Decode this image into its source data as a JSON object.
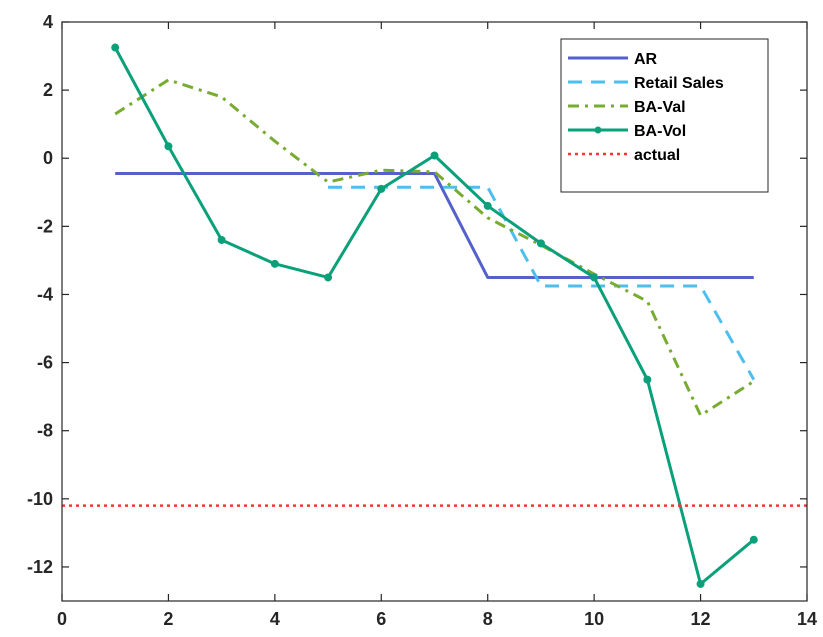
{
  "chart_data": {
    "type": "line",
    "title": "",
    "xlabel": "",
    "ylabel": "",
    "xlim": [
      0,
      14
    ],
    "ylim": [
      -13,
      4
    ],
    "xticks": [
      0,
      2,
      4,
      6,
      8,
      10,
      12,
      14
    ],
    "yticks": [
      4,
      2,
      0,
      -2,
      -4,
      -6,
      -8,
      -10,
      -12
    ],
    "xtick_labels": [
      "0",
      "2",
      "4",
      "6",
      "8",
      "10",
      "12",
      "14"
    ],
    "ytick_labels": [
      "4",
      "2",
      "0",
      "-2",
      "-4",
      "-6",
      "-8",
      "-10",
      "-12"
    ],
    "grid": false,
    "legend_position": "top-right",
    "series": [
      {
        "name": "AR",
        "color": "#5460cc",
        "style": "solid",
        "marker": "none",
        "x": [
          1,
          2,
          3,
          4,
          5,
          6,
          7,
          8,
          9,
          10,
          11,
          12,
          13
        ],
        "y": [
          -0.45,
          -0.45,
          -0.45,
          -0.45,
          -0.45,
          -0.45,
          -0.45,
          -3.5,
          -3.5,
          -3.5,
          -3.5,
          -3.5,
          -3.5
        ]
      },
      {
        "name": "Retail Sales",
        "color": "#4dbeee",
        "style": "dashed",
        "marker": "none",
        "x": [
          5,
          6,
          7,
          8,
          9,
          10,
          11,
          12,
          13
        ],
        "y": [
          -0.85,
          -0.85,
          -0.85,
          -0.85,
          -3.75,
          -3.75,
          -3.75,
          -3.75,
          -6.5
        ]
      },
      {
        "name": "BA-Val",
        "color": "#77ac30",
        "style": "dashdot",
        "marker": "none",
        "x": [
          1,
          2,
          3,
          4,
          5,
          6,
          7,
          8,
          9,
          10,
          11,
          12,
          13
        ],
        "y": [
          1.3,
          2.3,
          1.8,
          0.5,
          -0.7,
          -0.35,
          -0.4,
          -1.75,
          -2.55,
          -3.4,
          -4.2,
          -7.55,
          -6.55
        ]
      },
      {
        "name": "BA-Vol",
        "color": "#0aa07a",
        "style": "solid",
        "marker": "dot",
        "x": [
          1,
          2,
          3,
          4,
          5,
          6,
          7,
          8,
          9,
          10,
          11,
          12,
          13
        ],
        "y": [
          3.25,
          0.35,
          -2.4,
          -3.1,
          -3.5,
          -0.9,
          0.08,
          -1.4,
          -2.5,
          -3.5,
          -6.5,
          -12.5,
          -11.2
        ]
      },
      {
        "name": "actual",
        "color": "#ff3333",
        "style": "dotted",
        "marker": "none",
        "x": [
          0,
          14
        ],
        "y": [
          -10.2,
          -10.2
        ]
      }
    ]
  }
}
